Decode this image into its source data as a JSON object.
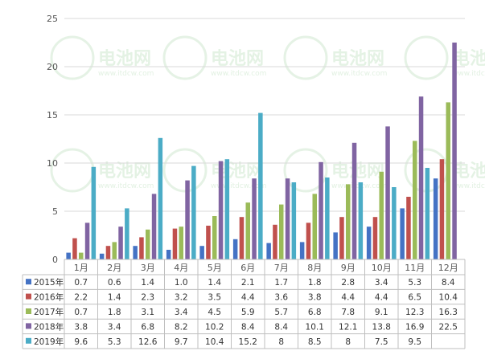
{
  "chart_data": {
    "type": "bar",
    "categories": [
      "1月",
      "2月",
      "3月",
      "4月",
      "5月",
      "6月",
      "7月",
      "8月",
      "9月",
      "10月",
      "11月",
      "12月"
    ],
    "series": [
      {
        "name": "2015年",
        "color": "#4472c4",
        "values": [
          0.7,
          0.6,
          1.4,
          1.0,
          1.4,
          2.1,
          1.7,
          1.8,
          2.8,
          3.4,
          5.3,
          8.4
        ],
        "labels": [
          "0.7",
          "0.6",
          "1.4",
          "1.0",
          "1.4",
          "2.1",
          "1.7",
          "1.8",
          "2.8",
          "3.4",
          "5.3",
          "8.4"
        ]
      },
      {
        "name": "2016年",
        "color": "#c0504d",
        "values": [
          2.2,
          1.4,
          2.3,
          3.2,
          3.5,
          4.4,
          3.6,
          3.8,
          4.4,
          4.4,
          6.5,
          10.4
        ],
        "labels": [
          "2.2",
          "1.4",
          "2.3",
          "3.2",
          "3.5",
          "4.4",
          "3.6",
          "3.8",
          "4.4",
          "4.4",
          "6.5",
          "10.4"
        ]
      },
      {
        "name": "2017年",
        "color": "#9bbb59",
        "values": [
          0.7,
          1.8,
          3.1,
          3.4,
          4.5,
          5.9,
          5.7,
          6.8,
          7.8,
          9.1,
          12.3,
          16.3
        ],
        "labels": [
          "0.7",
          "1.8",
          "3.1",
          "3.4",
          "4.5",
          "5.9",
          "5.7",
          "6.8",
          "7.8",
          "9.1",
          "12.3",
          "16.3"
        ]
      },
      {
        "name": "2018年",
        "color": "#8064a2",
        "values": [
          3.8,
          3.4,
          6.8,
          8.2,
          10.2,
          8.4,
          8.4,
          10.1,
          12.1,
          13.8,
          16.9,
          22.5
        ],
        "labels": [
          "3.8",
          "3.4",
          "6.8",
          "8.2",
          "10.2",
          "8.4",
          "8.4",
          "10.1",
          "12.1",
          "13.8",
          "16.9",
          "22.5"
        ]
      },
      {
        "name": "2019年",
        "color": "#4bacc6",
        "values": [
          9.6,
          5.3,
          12.6,
          9.7,
          10.4,
          15.2,
          8,
          8.5,
          8,
          7.5,
          9.5,
          null
        ],
        "labels": [
          "9.6",
          "5.3",
          "12.6",
          "9.7",
          "10.4",
          "15.2",
          "8",
          "8.5",
          "8",
          "7.5",
          "9.5",
          ""
        ]
      }
    ],
    "yticks": [
      "0",
      "5",
      "10",
      "15",
      "20",
      "25"
    ],
    "ylim": [
      0,
      25
    ],
    "grid": true,
    "legend": "data-table"
  },
  "watermark": {
    "logo_text": "电池网",
    "url_text": "www.itdcw.com"
  }
}
